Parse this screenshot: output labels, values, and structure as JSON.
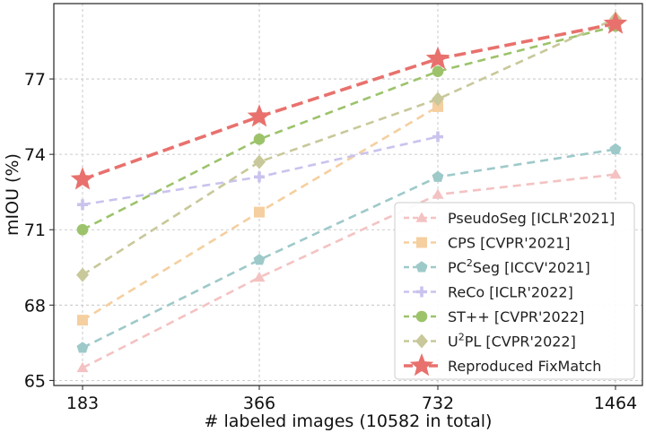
{
  "chart_data": {
    "type": "line",
    "title": "",
    "xlabel": "# labeled images (10582 in total)",
    "ylabel": "mIOU (%)",
    "categories": [
      "183",
      "366",
      "732",
      "1464"
    ],
    "ylim": [
      64.8,
      80.0
    ],
    "yticks": [
      65,
      68,
      71,
      74,
      77
    ],
    "grid": true,
    "legend_position": "lower-right",
    "series": [
      {
        "name": "PseudoSeg [ICLR'2021]",
        "name_main": "PseudoSeg [ICLR'2021]",
        "values": [
          65.5,
          69.1,
          72.4,
          73.2
        ],
        "color": "#f4c2c2",
        "marker": "triangle"
      },
      {
        "name": "CPS [CVPR'2021]",
        "name_main": "CPS [CVPR'2021]",
        "values": [
          67.4,
          71.7,
          75.9,
          null
        ],
        "color": "#f5cf9f",
        "marker": "square"
      },
      {
        "name": "PC2Seg [ICCV'2021]",
        "name_pre": "PC",
        "name_sup": "2",
        "name_post": "Seg [ICCV'2021]",
        "values": [
          66.3,
          69.8,
          73.1,
          74.2
        ],
        "color": "#9ec9c9",
        "marker": "pentagon"
      },
      {
        "name": "ReCo [ICLR'2022]",
        "name_main": "ReCo [ICLR'2022]",
        "values": [
          72.0,
          73.1,
          74.7,
          null
        ],
        "color": "#c9c3ee",
        "marker": "plus"
      },
      {
        "name": "ST++ [CVPR'2022]",
        "name_main": "ST++ [CVPR'2022]",
        "values": [
          71.0,
          74.6,
          77.3,
          79.1
        ],
        "color": "#9cc36a",
        "marker": "circle"
      },
      {
        "name": "U2PL [CVPR'2022]",
        "name_pre": "U",
        "name_sup": "2",
        "name_post": "PL [CVPR'2022]",
        "values": [
          69.2,
          73.7,
          76.2,
          79.4
        ],
        "color": "#c8c89a",
        "marker": "diamond"
      },
      {
        "name": "Reproduced FixMatch",
        "name_main": "Reproduced FixMatch",
        "values": [
          73.0,
          75.5,
          77.8,
          79.2
        ],
        "color": "#e8716d",
        "marker": "star",
        "highlight": true
      }
    ]
  }
}
